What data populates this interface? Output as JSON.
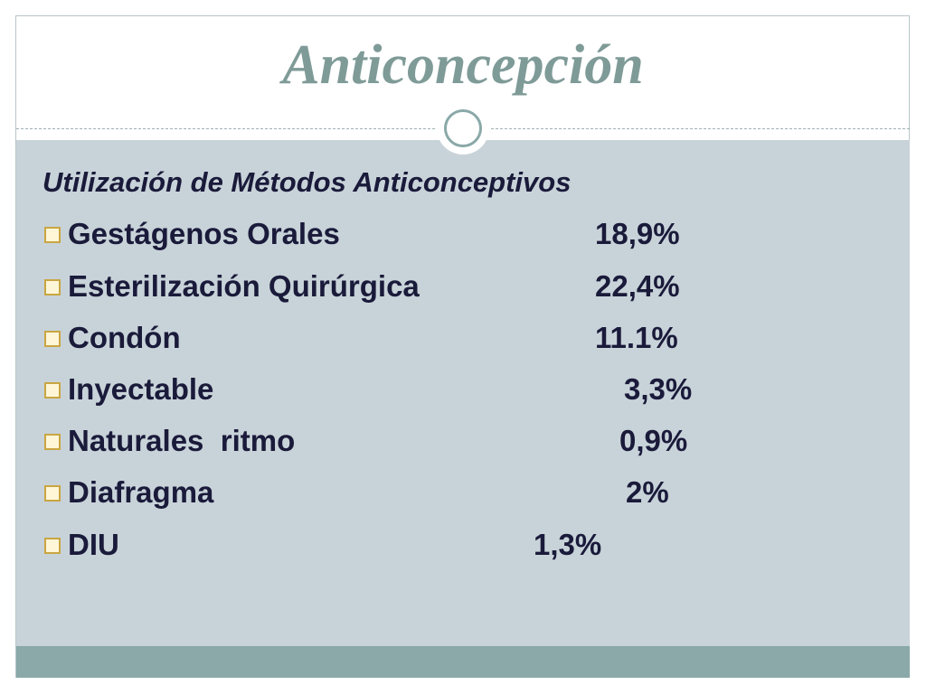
{
  "title": "Anticoncepción",
  "subtitle": "Utilización de Métodos Anticonceptivos",
  "items": [
    {
      "label": "Gestágenos Orales",
      "value": "18,9%"
    },
    {
      "label": "Esterilización Quirúrgica",
      "value": "22,4%"
    },
    {
      "label": "Condón",
      "value": "11.1%"
    },
    {
      "label": "Inyectable",
      "value": "3,3%"
    },
    {
      "label": "Naturales  ritmo",
      "value": "0,9%"
    },
    {
      "label": "Diafragma",
      "value": "2%"
    },
    {
      "label": "DIU",
      "value": "1,3%"
    }
  ]
}
